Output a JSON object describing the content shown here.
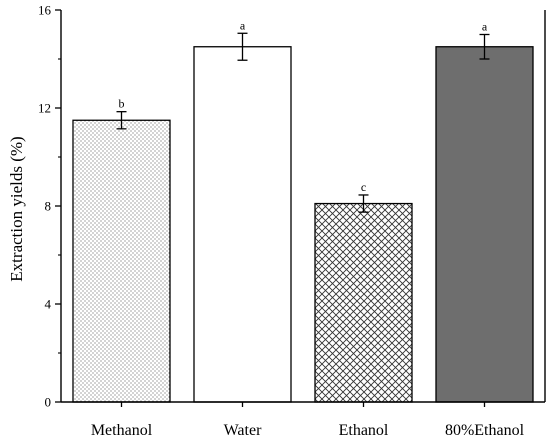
{
  "chart_data": {
    "type": "bar",
    "categories": [
      "Methanol",
      "Water",
      "Ethanol",
      "80%Ethanol"
    ],
    "values": [
      11.5,
      14.5,
      8.1,
      14.5
    ],
    "errors": [
      0.35,
      0.55,
      0.35,
      0.5
    ],
    "significance_letters": [
      "b",
      "a",
      "c",
      "a"
    ],
    "fill_patterns": [
      "dots",
      "solid-white",
      "crosshatch",
      "solid-gray"
    ],
    "ylabel": "Extraction yields (%)",
    "ylim": [
      0,
      16
    ],
    "yticks": [
      0,
      4,
      8,
      12,
      16
    ],
    "grid": false,
    "colors": {
      "axis": "#000000",
      "gray_bar": "#6e6e6e",
      "pattern_ink": "#555555"
    }
  }
}
